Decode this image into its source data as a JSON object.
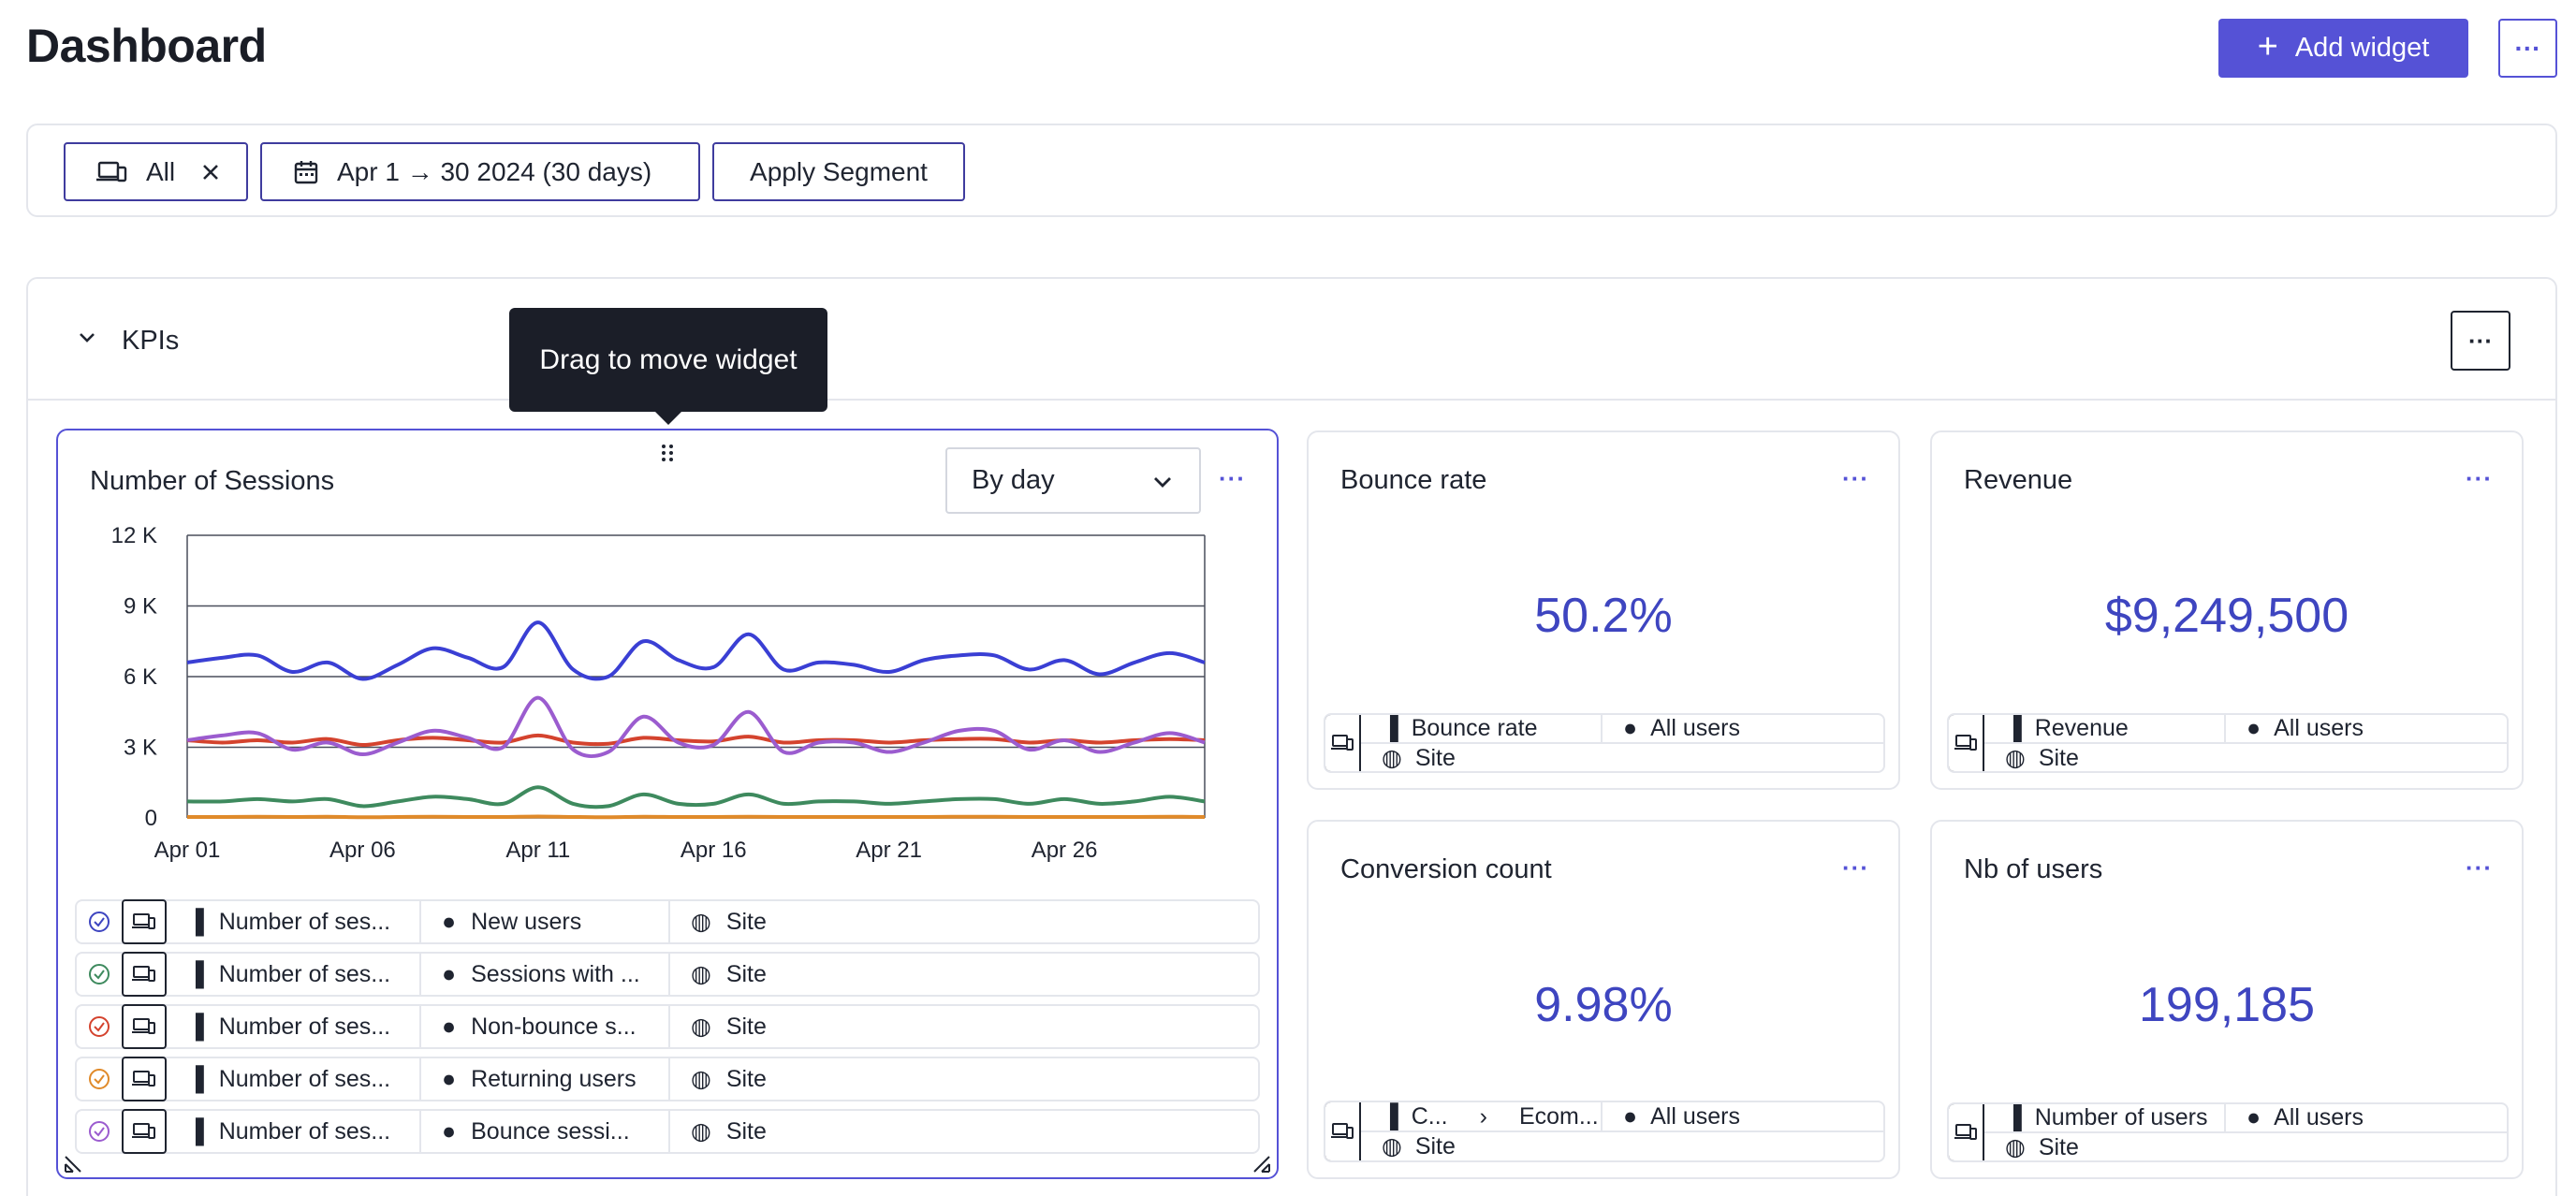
{
  "header": {
    "title": "Dashboard",
    "add_widget_label": "Add widget",
    "more_label": "···"
  },
  "filters": {
    "device_label": "All",
    "date_label": "Apr 1 → 30 2024 (30 days)",
    "segment_label": "Apply Segment"
  },
  "section": {
    "title": "KPIs",
    "more_label": "···"
  },
  "tooltip": "Drag to move widget",
  "sessions_widget": {
    "title": "Number of Sessions",
    "granularity": "By day",
    "more_label": "···",
    "series": [
      {
        "color": "#3a8ed8",
        "check_color": "#3e45c0",
        "metric": "Number of ses...",
        "segment": "New users",
        "scope": "Site"
      },
      {
        "color": "#3e8a5e",
        "check_color": "#3e8a5e",
        "metric": "Number of ses...",
        "segment": "Sessions with ...",
        "scope": "Site"
      },
      {
        "color": "#d4432e",
        "check_color": "#d4432e",
        "metric": "Number of ses...",
        "segment": "Non-bounce s...",
        "scope": "Site"
      },
      {
        "color": "#e08a2a",
        "check_color": "#e08a2a",
        "metric": "Number of ses...",
        "segment": "Returning users",
        "scope": "Site"
      },
      {
        "color": "#9b5ccf",
        "check_color": "#9b5ccf",
        "metric": "Number of ses...",
        "segment": "Bounce sessi...",
        "scope": "Site"
      }
    ]
  },
  "chart_data": {
    "type": "line",
    "title": "Number of Sessions",
    "xlabel": "",
    "ylabel": "",
    "ylim": [
      0,
      12000
    ],
    "y_ticks": [
      "0",
      "3 K",
      "6 K",
      "9 K",
      "12 K"
    ],
    "y_tick_values": [
      0,
      3000,
      6000,
      9000,
      12000
    ],
    "x_ticks": [
      "Apr 01",
      "Apr 06",
      "Apr 11",
      "Apr 16",
      "Apr 21",
      "Apr 26"
    ],
    "x_tick_days": [
      1,
      6,
      11,
      16,
      21,
      26
    ],
    "x": [
      1,
      2,
      3,
      4,
      5,
      6,
      7,
      8,
      9,
      10,
      11,
      12,
      13,
      14,
      15,
      16,
      17,
      18,
      19,
      20,
      21,
      22,
      23,
      24,
      25,
      26,
      27,
      28,
      29,
      30
    ],
    "grid": true,
    "series": [
      {
        "name": "New users",
        "color": "#3a3fd4",
        "values": [
          6600,
          6800,
          6900,
          6200,
          6600,
          5900,
          6500,
          7200,
          6800,
          6400,
          8300,
          6300,
          6000,
          7500,
          6700,
          6400,
          7800,
          6300,
          6600,
          6500,
          6200,
          6700,
          6900,
          6900,
          6300,
          6700,
          6100,
          6600,
          7000,
          6600
        ]
      },
      {
        "name": "Sessions with ...",
        "color": "#3e8a5e",
        "values": [
          700,
          700,
          800,
          700,
          800,
          500,
          700,
          900,
          800,
          600,
          1300,
          600,
          500,
          1000,
          600,
          600,
          1000,
          600,
          700,
          700,
          600,
          700,
          800,
          800,
          600,
          800,
          600,
          700,
          900,
          700
        ]
      },
      {
        "name": "Non-bounce s...",
        "color": "#d4432e",
        "values": [
          3300,
          3200,
          3300,
          3200,
          3350,
          3100,
          3300,
          3400,
          3300,
          3200,
          3500,
          3200,
          3150,
          3400,
          3300,
          3250,
          3450,
          3200,
          3300,
          3300,
          3200,
          3300,
          3350,
          3350,
          3200,
          3300,
          3200,
          3300,
          3350,
          3300
        ]
      },
      {
        "name": "Returning users",
        "color": "#e08a2a",
        "values": [
          40,
          40,
          50,
          40,
          50,
          30,
          40,
          50,
          40,
          40,
          60,
          40,
          30,
          50,
          40,
          40,
          50,
          40,
          40,
          40,
          40,
          40,
          50,
          50,
          40,
          40,
          40,
          40,
          50,
          40
        ]
      },
      {
        "name": "Bounce sessi...",
        "color": "#9b5ccf",
        "values": [
          3300,
          3500,
          3600,
          2900,
          3200,
          2700,
          3200,
          3700,
          3400,
          3000,
          5100,
          2900,
          2800,
          4300,
          3200,
          3100,
          4500,
          2800,
          3200,
          3200,
          2800,
          3200,
          3700,
          3700,
          2900,
          3300,
          2800,
          3200,
          3600,
          3200
        ]
      }
    ]
  },
  "kpi_widgets": [
    {
      "title": "Bounce rate",
      "value": "50.2%",
      "metric": "Bounce rate",
      "segment": "All users",
      "scope": "Site",
      "more_label": "···"
    },
    {
      "title": "Revenue",
      "value": "$9,249,500",
      "metric": "Revenue",
      "segment": "All users",
      "scope": "Site",
      "more_label": "···"
    },
    {
      "title": "Conversion count",
      "value": "9.98%",
      "metric": "C...",
      "metric2": "Ecom...",
      "segment": "All users",
      "scope": "Site",
      "more_label": "···"
    },
    {
      "title": "Nb of users",
      "value": "199,185",
      "metric": "Number of users",
      "segment": "All users",
      "scope": "Site",
      "more_label": "···"
    }
  ]
}
